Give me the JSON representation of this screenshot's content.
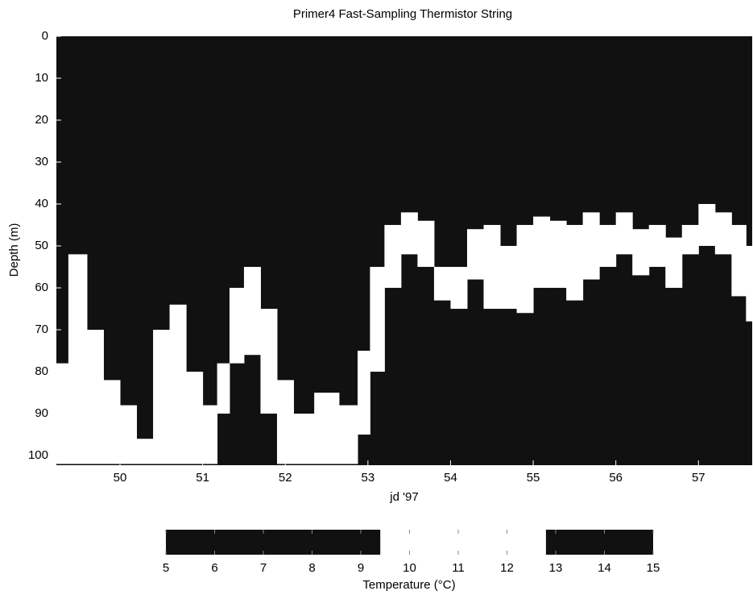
{
  "chart_data": [
    {
      "type": "band",
      "title": "Primer4  Fast-Sampling Thermistor String",
      "xlabel": "jd '97",
      "ylabel": "Depth (m)",
      "xlim": [
        49.23,
        57.65
      ],
      "ylim": [
        0,
        102.3
      ],
      "y_inverted": true,
      "xticks": [
        50,
        51,
        52,
        53,
        54,
        55,
        56,
        57
      ],
      "yticks": [
        0,
        10,
        20,
        30,
        40,
        50,
        60,
        70,
        80,
        90,
        100
      ],
      "background": "#111111",
      "color": "#ffffff",
      "band": {
        "x": [
          49.25,
          49.5,
          49.7,
          49.9,
          50.1,
          50.3,
          50.5,
          50.7,
          50.9,
          51.1,
          51.25,
          51.4,
          51.6,
          51.8,
          52.0,
          52.2,
          52.5,
          52.8,
          52.95,
          53.1,
          53.3,
          53.5,
          53.7,
          53.9,
          54.1,
          54.3,
          54.5,
          54.7,
          54.9,
          55.1,
          55.3,
          55.5,
          55.7,
          55.9,
          56.1,
          56.3,
          56.5,
          56.7,
          56.9,
          57.1,
          57.3,
          57.5,
          57.65
        ],
        "top": [
          78,
          52,
          70,
          82,
          88,
          96,
          70,
          64,
          80,
          88,
          78,
          60,
          55,
          65,
          82,
          90,
          85,
          88,
          75,
          55,
          45,
          42,
          44,
          55,
          55,
          46,
          45,
          50,
          45,
          43,
          44,
          45,
          42,
          45,
          42,
          46,
          45,
          48,
          45,
          40,
          42,
          45,
          50
        ],
        "bottom": [
          102,
          102,
          102,
          102,
          102,
          102,
          102,
          102,
          102,
          102,
          90,
          78,
          76,
          90,
          102,
          102,
          102,
          102,
          95,
          80,
          60,
          52,
          55,
          63,
          65,
          58,
          65,
          65,
          66,
          60,
          60,
          63,
          58,
          55,
          52,
          57,
          55,
          60,
          52,
          50,
          52,
          62,
          68
        ]
      }
    },
    {
      "type": "colorbar",
      "xlabel": "Temperature (°C)",
      "xlim": [
        5,
        15
      ],
      "xticks": [
        5,
        6,
        7,
        8,
        9,
        10,
        11,
        12,
        13,
        14,
        15
      ],
      "highlight": [
        9.4,
        12.8
      ],
      "background": "#111111",
      "color": "#ffffff"
    }
  ]
}
